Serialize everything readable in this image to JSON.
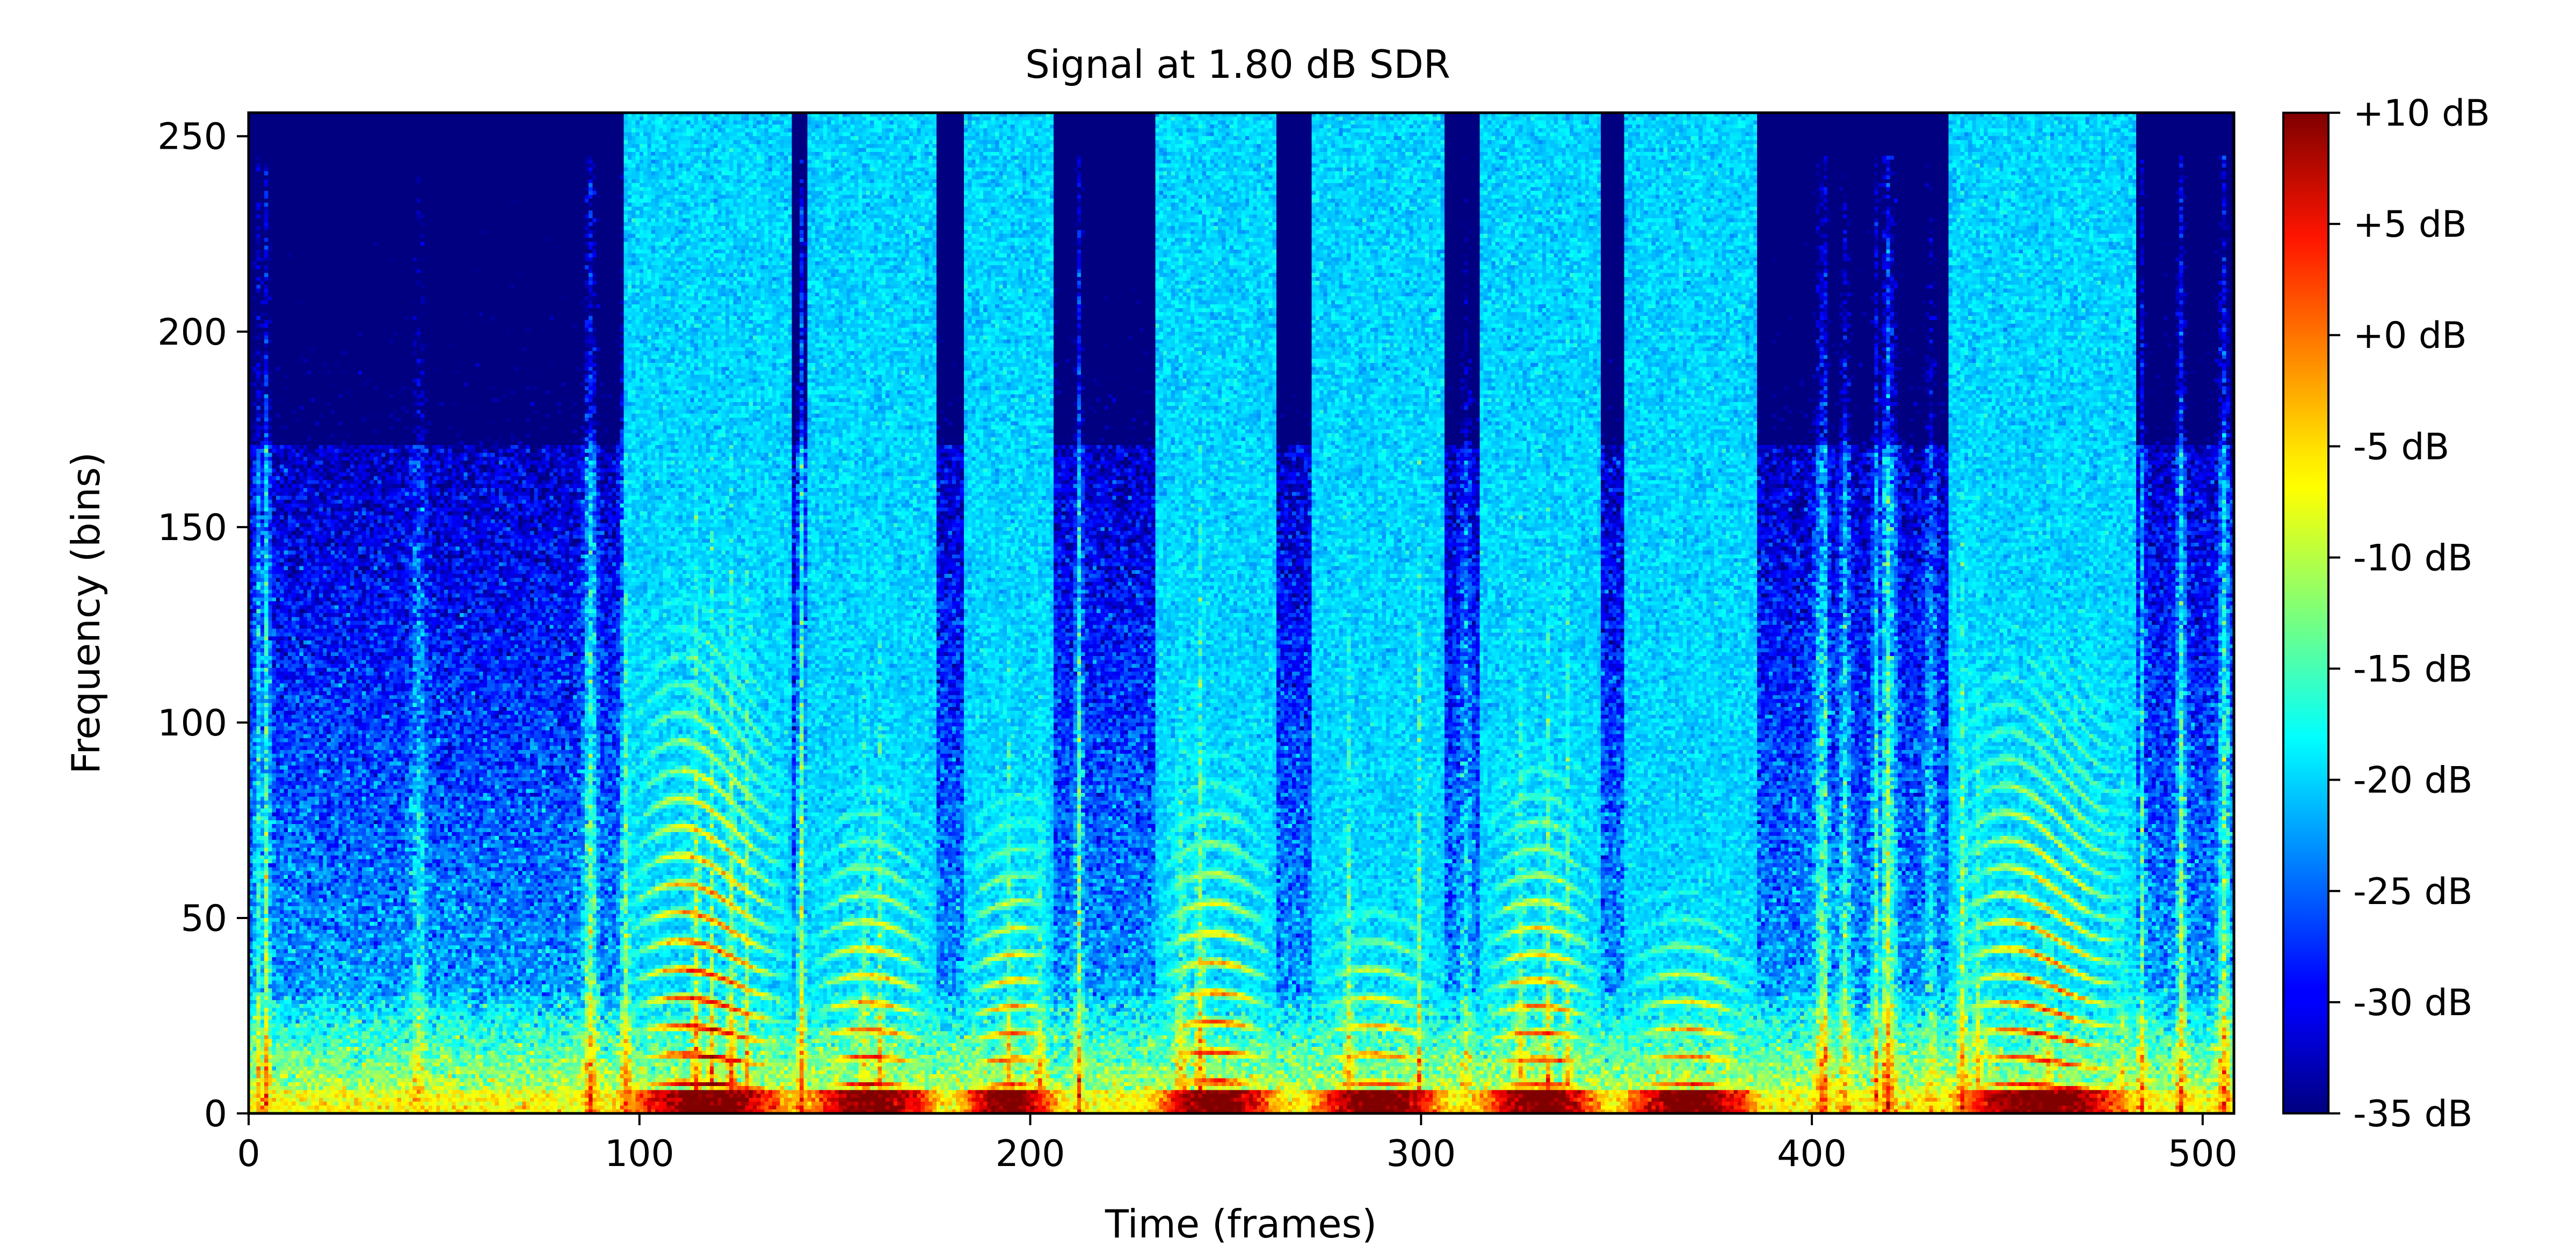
{
  "chart_data": {
    "type": "heatmap",
    "title": "Signal at 1.80 dB SDR",
    "xlabel": "Time (frames)",
    "ylabel": "Frequency (bins)",
    "xlim": [
      0,
      508
    ],
    "ylim": [
      0,
      256
    ],
    "x_ticks": [
      0,
      100,
      200,
      300,
      400,
      500
    ],
    "y_ticks": [
      0,
      50,
      100,
      150,
      200,
      250
    ],
    "colormap": "jet",
    "colorbar": {
      "range": [
        -35,
        10
      ],
      "ticks": [
        10,
        5,
        0,
        -5,
        -10,
        -15,
        -20,
        -25,
        -30,
        -35
      ],
      "tick_labels": [
        "+10 dB",
        "+5 dB",
        "+0 dB",
        "-5 dB",
        "-10 dB",
        "-15 dB",
        "-20 dB",
        "-25 dB",
        "-30 dB",
        "-35 dB"
      ]
    },
    "grid": false,
    "voiced_segments": [
      {
        "start": 96,
        "end": 138,
        "peak_db": 10,
        "f0_bins": 6.5,
        "max_bin": 140
      },
      {
        "start": 143,
        "end": 175,
        "peak_db": 6,
        "f0_bins": 6.2,
        "max_bin": 90
      },
      {
        "start": 183,
        "end": 205,
        "peak_db": 5,
        "f0_bins": 6.0,
        "max_bin": 90
      },
      {
        "start": 232,
        "end": 262,
        "peak_db": 6,
        "f0_bins": 6.8,
        "max_bin": 100
      },
      {
        "start": 272,
        "end": 305,
        "peak_db": 5,
        "f0_bins": 6.5,
        "max_bin": 60
      },
      {
        "start": 315,
        "end": 345,
        "peak_db": 6,
        "f0_bins": 6.0,
        "max_bin": 100
      },
      {
        "start": 352,
        "end": 385,
        "peak_db": 5,
        "f0_bins": 6.3,
        "max_bin": 60
      },
      {
        "start": 435,
        "end": 482,
        "peak_db": 6,
        "f0_bins": 6.2,
        "max_bin": 130
      }
    ]
  }
}
